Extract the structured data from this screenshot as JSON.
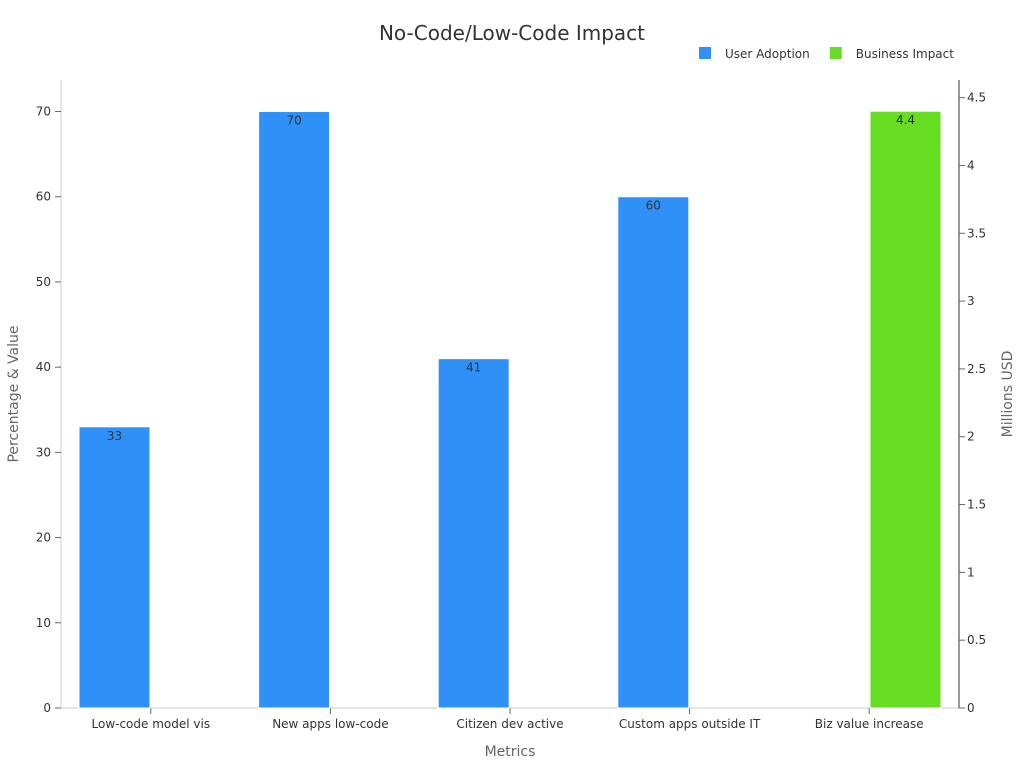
{
  "chart_data": {
    "type": "bar",
    "title": "No-Code/Low-Code Impact",
    "xlabel": "Metrics",
    "ylabel": "Percentage & Value",
    "y2label": "Millions USD",
    "categories": [
      "Low-code model vis",
      "New apps low-code",
      "Citizen dev active",
      "Custom apps outside IT",
      "Biz value increase"
    ],
    "ylim": [
      0,
      73.7
    ],
    "y_ticks": [
      0,
      10,
      20,
      30,
      40,
      50,
      60,
      70
    ],
    "y2lim": [
      0,
      4.63
    ],
    "y2_ticks": [
      0,
      0.5,
      1,
      1.5,
      2,
      2.5,
      3,
      3.5,
      4,
      4.5
    ],
    "legend_position": "top-right",
    "grid": false,
    "series": [
      {
        "name": "User Adoption",
        "axis": "left",
        "color": "#2f91f8",
        "values": [
          33,
          70,
          41,
          60,
          null
        ],
        "labels": [
          "33",
          "70",
          "41",
          "60",
          ""
        ]
      },
      {
        "name": "Business Impact",
        "axis": "right",
        "color": "#66dd22",
        "values": [
          null,
          null,
          null,
          null,
          4.4
        ],
        "labels": [
          "",
          "",
          "",
          "",
          "4.4"
        ]
      }
    ]
  }
}
